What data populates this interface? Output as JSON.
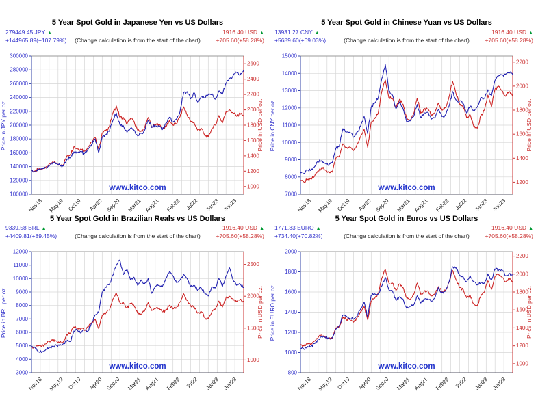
{
  "watermark": "www.kitco.com",
  "colors": {
    "local_line": "#2020b0",
    "local_label": "#3333cc",
    "usd_line": "#cc2222",
    "usd_label": "#cc3333",
    "arrow_up": "#009933",
    "grid": "#d6d6d6",
    "spine_left": "#3344aa",
    "spine_right": "#cc3333",
    "spine_top": "#9a9a9a",
    "spine_bottom": "#555566",
    "watermark": "#2233cc",
    "title": "#000000"
  },
  "chart_data": [
    {
      "id": "jpy",
      "type": "line",
      "title": "5 Year Spot Gold in Japanese Yen vs US Dollars",
      "subtitle": "(Change calculation is from the start of the chart)",
      "left_stat": {
        "value": "279449.45 JPY",
        "arrow": "▲",
        "change": "+144965.89(+107.79%)"
      },
      "right_stat": {
        "value": "1916.40 USD",
        "arrow": "▲",
        "change": "+705.60(+58.28%)"
      },
      "x_tick_labels": [
        "Nov18",
        "May19",
        "Oct19",
        "Apr20",
        "Sep20",
        "Mar21",
        "Aug21",
        "Feb22",
        "Jul22",
        "Jan23",
        "Jun23"
      ],
      "x_tick_months": [
        3,
        9,
        14,
        20,
        25,
        31,
        36,
        42,
        47,
        53,
        58
      ],
      "left_axis": {
        "label": "Price in JPY per oz.",
        "min": 100000,
        "max": 300000,
        "ticks": [
          100000,
          120000,
          140000,
          160000,
          180000,
          200000,
          220000,
          240000,
          260000,
          280000,
          300000
        ]
      },
      "right_axis": {
        "label": "Price in USD per oz.",
        "min": 900,
        "max": 2700,
        "ticks": [
          1000,
          1200,
          1400,
          1600,
          1800,
          2000,
          2200,
          2400,
          2600
        ]
      },
      "series": [
        {
          "name": "gold-in-jpy",
          "axis": "left",
          "values": [
            134500,
            133000,
            136500,
            137500,
            138500,
            141000,
            145500,
            144000,
            142500,
            141000,
            150500,
            153000,
            161500,
            160000,
            161500,
            159000,
            165000,
            172000,
            180000,
            160000,
            182500,
            186000,
            191000,
            206500,
            217500,
            200500,
            199000,
            189500,
            195500,
            192500,
            184500,
            188000,
            192500,
            207500,
            196500,
            199000,
            199500,
            193500,
            202500,
            211500,
            204500,
            209000,
            219500,
            246500,
            248500,
            238000,
            247000,
            233500,
            241500,
            239500,
            244000,
            245500,
            237500,
            249500,
            245000,
            260500,
            267500,
            271500,
            276500,
            272500,
            279450
          ]
        },
        {
          "name": "gold-in-usd",
          "axis": "right",
          "values": [
            1211,
            1200,
            1222,
            1225,
            1252,
            1292,
            1322,
            1300,
            1282,
            1284,
            1400,
            1418,
            1520,
            1490,
            1492,
            1463,
            1515,
            1580,
            1640,
            1490,
            1700,
            1730,
            1780,
            1955,
            2050,
            1900,
            1900,
            1815,
            1890,
            1850,
            1735,
            1720,
            1770,
            1900,
            1775,
            1805,
            1812,
            1755,
            1780,
            1860,
            1800,
            1820,
            1910,
            2040,
            1935,
            1850,
            1830,
            1735,
            1760,
            1665,
            1650,
            1755,
            1800,
            1925,
            1830,
            1975,
            2000,
            1960,
            1915,
            1955,
            1916
          ]
        }
      ]
    },
    {
      "id": "cny",
      "type": "line",
      "title": "5 Year Spot Gold in Chinese Yuan vs US Dollars",
      "subtitle": "(Change calculation is from the start of the chart)",
      "left_stat": {
        "value": "13931.27 CNY",
        "arrow": "▲",
        "change": "+5689.60(+69.03%)"
      },
      "right_stat": {
        "value": "1916.40 USD",
        "arrow": "▲",
        "change": "+705.60(+58.28%)"
      },
      "x_tick_labels": [
        "Nov18",
        "May19",
        "Oct19",
        "Apr20",
        "Sep20",
        "Mar21",
        "Aug21",
        "Feb22",
        "Jul22",
        "Jan23",
        "Jun23"
      ],
      "x_tick_months": [
        3,
        9,
        14,
        20,
        25,
        31,
        36,
        42,
        47,
        53,
        58
      ],
      "left_axis": {
        "label": "Price in CNY per oz.",
        "min": 7000,
        "max": 15000,
        "ticks": [
          7000,
          8000,
          9000,
          10000,
          11000,
          12000,
          13000,
          14000,
          15000
        ]
      },
      "right_axis": {
        "label": "Price in USD per oz.",
        "min": 1100,
        "max": 2250,
        "ticks": [
          1200,
          1400,
          1600,
          1800,
          2000,
          2200
        ]
      },
      "series": [
        {
          "name": "gold-in-cny",
          "axis": "left",
          "values": [
            8242,
            8200,
            8400,
            8420,
            8600,
            8870,
            8950,
            8800,
            8680,
            8850,
            9650,
            9800,
            10800,
            10600,
            10550,
            10300,
            10600,
            10950,
            11500,
            10500,
            12050,
            12300,
            12600,
            13700,
            14500,
            12950,
            12750,
            11950,
            12350,
            11950,
            11200,
            11250,
            11500,
            12200,
            11450,
            11700,
            11750,
            11350,
            11400,
            11900,
            11500,
            11600,
            12100,
            12950,
            12450,
            12400,
            12250,
            11700,
            12100,
            11850,
            12050,
            12600,
            12550,
            13050,
            12700,
            13600,
            13850,
            13900,
            13950,
            14050,
            13930
          ]
        },
        {
          "name": "gold-in-usd",
          "axis": "right",
          "values": [
            1211,
            1200,
            1222,
            1225,
            1252,
            1292,
            1322,
            1300,
            1282,
            1284,
            1400,
            1418,
            1520,
            1490,
            1492,
            1463,
            1515,
            1580,
            1640,
            1490,
            1700,
            1730,
            1780,
            1955,
            2050,
            1900,
            1900,
            1815,
            1890,
            1850,
            1735,
            1720,
            1770,
            1900,
            1775,
            1805,
            1812,
            1755,
            1780,
            1860,
            1800,
            1820,
            1910,
            2040,
            1935,
            1850,
            1830,
            1735,
            1760,
            1665,
            1650,
            1755,
            1800,
            1925,
            1830,
            1975,
            2000,
            1960,
            1915,
            1955,
            1916
          ]
        }
      ]
    },
    {
      "id": "brl",
      "type": "line",
      "title": "5 Year Spot Gold in Brazilian Reals vs US Dollars",
      "subtitle": "(Change calculation is from the start of the chart)",
      "left_stat": {
        "value": "9339.58 BRL",
        "arrow": "▲",
        "change": "+4409.81(+89.45%)"
      },
      "right_stat": {
        "value": "1916.40 USD",
        "arrow": "▲",
        "change": "+705.60(+58.28%)"
      },
      "x_tick_labels": [
        "Nov18",
        "May19",
        "Oct19",
        "Apr20",
        "Sep20",
        "Mar21",
        "Aug21",
        "Feb22",
        "Jul22",
        "Jan23",
        "Jun23"
      ],
      "x_tick_months": [
        3,
        9,
        14,
        20,
        25,
        31,
        36,
        42,
        47,
        53,
        58
      ],
      "left_axis": {
        "label": "Price in BRL per oz.",
        "min": 3000,
        "max": 12000,
        "ticks": [
          3000,
          4000,
          5000,
          6000,
          7000,
          8000,
          9000,
          10000,
          11000,
          12000
        ]
      },
      "right_axis": {
        "label": "Price in USD per oz.",
        "min": 800,
        "max": 2700,
        "ticks": [
          1000,
          1500,
          2000,
          2500
        ]
      },
      "series": [
        {
          "name": "gold-in-brl",
          "axis": "left",
          "values": [
            4930,
            4860,
            4560,
            4530,
            4700,
            4840,
            4960,
            5060,
            5000,
            5150,
            5380,
            5330,
            6100,
            6180,
            5950,
            6180,
            6100,
            6680,
            7300,
            7500,
            9000,
            9350,
            9550,
            10250,
            11000,
            11400,
            10300,
            10700,
            9900,
            10100,
            9500,
            9900,
            9600,
            10000,
            8900,
            9400,
            9500,
            9400,
            10000,
            10500,
            10200,
            9700,
            9900,
            10300,
            10000,
            9400,
            9500,
            9100,
            9300,
            8900,
            8700,
            9400,
            9300,
            10000,
            9400,
            10200,
            10800,
            9900,
            9500,
            9600,
            9340
          ]
        },
        {
          "name": "gold-in-usd",
          "axis": "right",
          "values": [
            1211,
            1200,
            1222,
            1225,
            1252,
            1292,
            1322,
            1300,
            1282,
            1284,
            1400,
            1418,
            1520,
            1490,
            1492,
            1463,
            1515,
            1580,
            1640,
            1490,
            1700,
            1730,
            1780,
            1955,
            2050,
            1900,
            1900,
            1815,
            1890,
            1850,
            1735,
            1720,
            1770,
            1900,
            1775,
            1805,
            1812,
            1755,
            1780,
            1860,
            1800,
            1820,
            1910,
            2040,
            1935,
            1850,
            1830,
            1735,
            1760,
            1665,
            1650,
            1755,
            1800,
            1925,
            1830,
            1975,
            2000,
            1960,
            1915,
            1955,
            1916
          ]
        }
      ]
    },
    {
      "id": "euro",
      "type": "line",
      "title": "5 Year Spot Gold in Euros vs US Dollars",
      "subtitle": "(Change calculation is from the start of the chart)",
      "left_stat": {
        "value": "1771.33 EURO",
        "arrow": "▲",
        "change": "+734.40(+70.82%)"
      },
      "right_stat": {
        "value": "1916.40 USD",
        "arrow": "▲",
        "change": "+705.60(+58.28%)"
      },
      "x_tick_labels": [
        "Nov18",
        "May19",
        "Oct19",
        "Apr20",
        "Sep20",
        "Mar21",
        "Aug21",
        "Feb22",
        "Jul22",
        "Jan23",
        "Jun23"
      ],
      "x_tick_months": [
        3,
        9,
        14,
        20,
        25,
        31,
        36,
        42,
        47,
        53,
        58
      ],
      "left_axis": {
        "label": "Price in EURO per oz.",
        "min": 800,
        "max": 2000,
        "ticks": [
          800,
          1000,
          1200,
          1400,
          1600,
          1800,
          2000
        ]
      },
      "right_axis": {
        "label": "Price in USD per oz.",
        "min": 900,
        "max": 2250,
        "ticks": [
          1000,
          1200,
          1400,
          1600,
          1800,
          2000,
          2200
        ]
      },
      "series": [
        {
          "name": "gold-in-euro",
          "axis": "left",
          "values": [
            1037,
            1032,
            1060,
            1062,
            1090,
            1130,
            1160,
            1152,
            1140,
            1150,
            1232,
            1270,
            1372,
            1360,
            1340,
            1330,
            1360,
            1432,
            1500,
            1350,
            1570,
            1582,
            1582,
            1660,
            1745,
            1620,
            1612,
            1520,
            1552,
            1530,
            1440,
            1460,
            1470,
            1562,
            1490,
            1530,
            1532,
            1510,
            1540,
            1645,
            1590,
            1610,
            1700,
            1850,
            1840,
            1760,
            1750,
            1700,
            1760,
            1700,
            1670,
            1690,
            1690,
            1780,
            1720,
            1830,
            1815,
            1820,
            1760,
            1780,
            1771
          ]
        },
        {
          "name": "gold-in-usd",
          "axis": "right",
          "values": [
            1211,
            1200,
            1222,
            1225,
            1252,
            1292,
            1322,
            1300,
            1282,
            1284,
            1400,
            1418,
            1520,
            1490,
            1492,
            1463,
            1515,
            1580,
            1640,
            1490,
            1700,
            1730,
            1780,
            1955,
            2050,
            1900,
            1900,
            1815,
            1890,
            1850,
            1735,
            1720,
            1770,
            1900,
            1775,
            1805,
            1812,
            1755,
            1780,
            1860,
            1800,
            1820,
            1910,
            2040,
            1935,
            1850,
            1830,
            1735,
            1760,
            1665,
            1650,
            1755,
            1800,
            1925,
            1830,
            1975,
            2000,
            1960,
            1915,
            1955,
            1916
          ]
        }
      ]
    }
  ]
}
